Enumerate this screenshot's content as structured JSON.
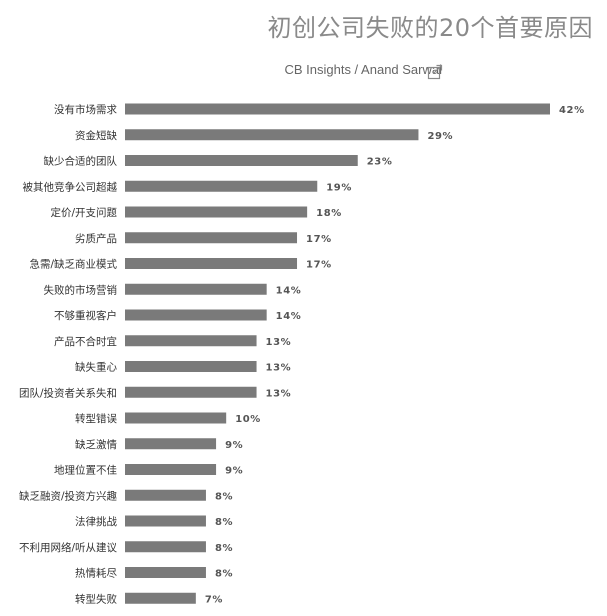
{
  "header": {
    "title": "初创公司失败的20个首要原因",
    "source": "CB Insights / Anand Sarwal",
    "link_icon": "external-link-icon"
  },
  "colors": {
    "bar": "#7a7a7a",
    "text": "#333333",
    "title": "#8a8a8a"
  },
  "chart_data": {
    "type": "bar",
    "orientation": "horizontal",
    "title": "初创公司失败的20个首要原因",
    "subtitle": "CB Insights / Anand Sarwal",
    "categories": [
      "没有市场需求",
      "资金短缺",
      "缺少合适的团队",
      "被其他竞争公司超越",
      "定价/开支问题",
      "劣质产品",
      "急需/缺乏商业模式",
      "失败的市场营销",
      "不够重视客户",
      "产品不合时宜",
      "缺失重心",
      "团队/投资者关系失和",
      "转型错误",
      "缺乏激情",
      "地理位置不佳",
      "缺乏融资/投资方兴趣",
      "法律挑战",
      "不利用网络/听从建议",
      "热情耗尽",
      "转型失败"
    ],
    "values": [
      42,
      29,
      23,
      19,
      18,
      17,
      17,
      14,
      14,
      13,
      13,
      13,
      10,
      9,
      9,
      8,
      8,
      8,
      8,
      7
    ],
    "value_labels": [
      "42%",
      "29%",
      "23%",
      "19%",
      "18%",
      "17%",
      "17%",
      "14%",
      "14%",
      "13%",
      "13%",
      "13%",
      "10%",
      "9%",
      "9%",
      "8%",
      "8%",
      "8%",
      "8%",
      "7%"
    ],
    "unit": "%",
    "xlim": [
      0,
      42
    ],
    "grid": false,
    "legend": "none"
  }
}
